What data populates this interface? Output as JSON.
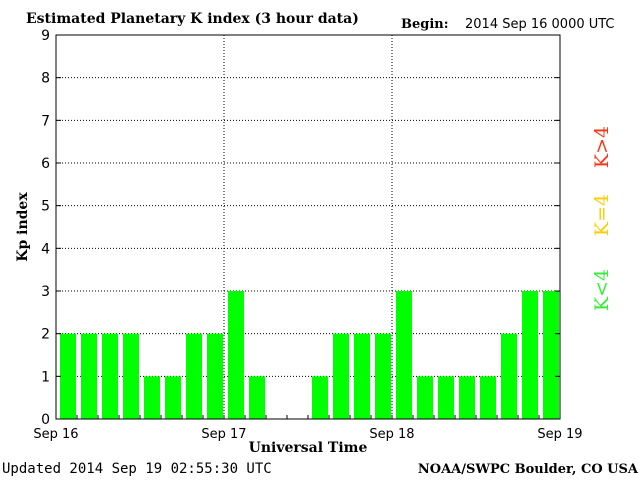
{
  "chart_data": {
    "type": "bar",
    "title": "Estimated Planetary K index (3 hour data)",
    "begin_label": "Begin:",
    "begin_value": "2014 Sep 16 0000 UTC",
    "ylabel": "Kp index",
    "xlabel": "Universal Time",
    "ylim": [
      0,
      9
    ],
    "yticks": [
      "0",
      "1",
      "2",
      "3",
      "4",
      "5",
      "6",
      "7",
      "8",
      "9"
    ],
    "xticks": [
      "Sep 16",
      "Sep 17",
      "Sep 18",
      "Sep 19"
    ],
    "grid": "dotted",
    "values": [
      2,
      2,
      2,
      2,
      1,
      1,
      2,
      2,
      3,
      1,
      0,
      0,
      1,
      2,
      2,
      2,
      3,
      1,
      1,
      1,
      1,
      2,
      3,
      3
    ],
    "bar_color": "#00ff00",
    "legend": [
      {
        "label": "K<4",
        "color": "#33ee33"
      },
      {
        "label": "K=4",
        "color": "#ffcc00"
      },
      {
        "label": "K>4",
        "color": "#ff3311"
      }
    ],
    "footer_left": "Updated 2014 Sep 19 02:55:30 UTC",
    "footer_right": "NOAA/SWPC Boulder, CO USA"
  }
}
